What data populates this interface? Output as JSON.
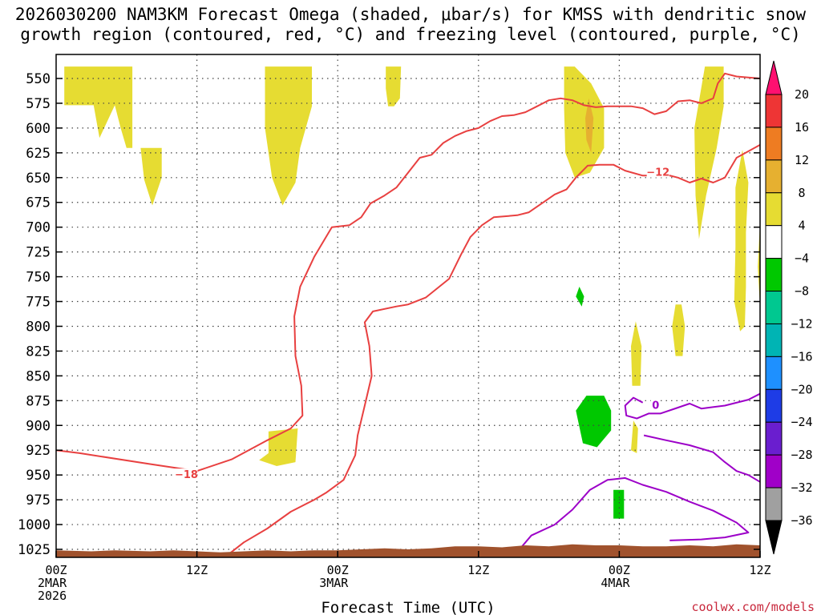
{
  "chart_data": {
    "type": "time-height",
    "title_line1": "2026030200 NAM3KM Forecast Omega (shaded, μbar/s) for KMSS with dendritic snow",
    "title_line2": "growth region (contoured, red, °C) and freezing level (contoured, purple, °C)",
    "xlabel": "Forecast Time (UTC)",
    "credit": "coolwx.com/models",
    "x_range_hours": [
      0,
      60
    ],
    "y_range_hpa": [
      1035,
      538
    ],
    "y_ticks": [
      "550",
      "575",
      "600",
      "625",
      "650",
      "675",
      "700",
      "725",
      "750",
      "775",
      "800",
      "825",
      "850",
      "875",
      "900",
      "925",
      "950",
      "975",
      "1000",
      "1025"
    ],
    "x_ticks": [
      {
        "hour": 0,
        "time": "00Z",
        "date": "2MAR",
        "year": "2026"
      },
      {
        "hour": 12,
        "time": "12Z",
        "date": "",
        "year": ""
      },
      {
        "hour": 24,
        "time": "00Z",
        "date": "3MAR",
        "year": ""
      },
      {
        "hour": 36,
        "time": "12Z",
        "date": "",
        "year": ""
      },
      {
        "hour": 48,
        "time": "00Z",
        "date": "4MAR",
        "year": ""
      },
      {
        "hour": 60,
        "time": "12Z",
        "date": "",
        "year": ""
      }
    ],
    "colorbar": {
      "labels": [
        "20",
        "16",
        "12",
        "8",
        "4",
        "-4",
        "-8",
        "-12",
        "-16",
        "-20",
        "-24",
        "-28",
        "-32",
        "-36"
      ],
      "colors": [
        "#ff1070",
        "#ee3535",
        "#ee7c22",
        "#e6b030",
        "#e6dc32",
        "#ffffff",
        "#00c800",
        "#00c890",
        "#00b4b4",
        "#1e90ff",
        "#1e3ce6",
        "#6a1ecf",
        "#a000c8",
        "#a0a0a0",
        "#000000"
      ]
    },
    "omega_regions": [
      {
        "name": "upward-motion-a",
        "level": "4..8",
        "points": [
          [
            0.7,
            538
          ],
          [
            6.5,
            538
          ],
          [
            6.5,
            620
          ],
          [
            9,
            620
          ],
          [
            9,
            650
          ],
          [
            8.2,
            678
          ],
          [
            7.5,
            652
          ],
          [
            7.2,
            620
          ],
          [
            6,
            620
          ],
          [
            5.5,
            600
          ],
          [
            5,
            577
          ],
          [
            3.7,
            610
          ],
          [
            3.2,
            577
          ],
          [
            1.5,
            577
          ],
          [
            0.7,
            577
          ]
        ]
      },
      {
        "name": "upward-motion-b",
        "level": "4..8",
        "points": [
          [
            17.8,
            538
          ],
          [
            21.8,
            538
          ],
          [
            21.8,
            578
          ],
          [
            20.8,
            620
          ],
          [
            20.4,
            655
          ],
          [
            19.3,
            678
          ],
          [
            18.4,
            650
          ],
          [
            17.8,
            600
          ]
        ]
      },
      {
        "name": "upward-motion-c",
        "level": "4..8",
        "points": [
          [
            28.1,
            538
          ],
          [
            29.4,
            538
          ],
          [
            29.3,
            570
          ],
          [
            28.8,
            578
          ],
          [
            28.3,
            578
          ],
          [
            28.1,
            560
          ]
        ]
      },
      {
        "name": "upward-motion-d",
        "level": "4..8",
        "points": [
          [
            18.1,
            906
          ],
          [
            20.6,
            903
          ],
          [
            20.4,
            937
          ],
          [
            18.8,
            941
          ],
          [
            17.3,
            935
          ],
          [
            18.1,
            928
          ]
        ]
      },
      {
        "name": "upward-motion-e",
        "level": "4..8",
        "points": [
          [
            43.3,
            538
          ],
          [
            44.2,
            538
          ],
          [
            45.6,
            555
          ],
          [
            46.7,
            580
          ],
          [
            46.7,
            620
          ],
          [
            45.5,
            645
          ],
          [
            44.2,
            650
          ],
          [
            43.4,
            625
          ],
          [
            43.3,
            580
          ]
        ]
      },
      {
        "name": "upward-motion-f",
        "level": "4..8",
        "points": [
          [
            55.3,
            538
          ],
          [
            56.9,
            538
          ],
          [
            56.9,
            578
          ],
          [
            56.3,
            620
          ],
          [
            55.4,
            668
          ],
          [
            54.8,
            712
          ],
          [
            54.5,
            668
          ],
          [
            54.4,
            600
          ]
        ]
      },
      {
        "name": "upward-motion-g",
        "level": "4..8",
        "points": [
          [
            58.5,
            622
          ],
          [
            59.0,
            655
          ],
          [
            58.8,
            705
          ],
          [
            58.8,
            760
          ],
          [
            58.7,
            800
          ],
          [
            58.3,
            805
          ],
          [
            57.8,
            775
          ],
          [
            57.9,
            720
          ],
          [
            57.9,
            660
          ]
        ]
      },
      {
        "name": "upward-motion-h",
        "level": "4..8",
        "points": [
          [
            60,
            695
          ],
          [
            60,
            780
          ],
          [
            59.8,
            740
          ]
        ]
      },
      {
        "name": "upward-motion-i",
        "level": "4..8",
        "points": [
          [
            53.3,
            778
          ],
          [
            53.6,
            800
          ],
          [
            53.4,
            830
          ],
          [
            52.8,
            830
          ],
          [
            52.5,
            800
          ],
          [
            52.8,
            778
          ]
        ]
      },
      {
        "name": "upward-motion-j",
        "level": "4..8",
        "points": [
          [
            49.4,
            795
          ],
          [
            49.9,
            820
          ],
          [
            49.8,
            860
          ],
          [
            49.1,
            860
          ],
          [
            49.0,
            820
          ]
        ]
      },
      {
        "name": "upward-motion-k",
        "level": "4..8",
        "points": [
          [
            49.2,
            895
          ],
          [
            49.6,
            903
          ],
          [
            49.5,
            928
          ],
          [
            49.0,
            925
          ]
        ]
      },
      {
        "name": "upward-motion-l",
        "level": "8..12",
        "points": [
          [
            45.4,
            570
          ],
          [
            45.8,
            590
          ],
          [
            45.6,
            625
          ],
          [
            45.2,
            612
          ],
          [
            45.1,
            590
          ]
        ]
      },
      {
        "name": "downward-motion-a",
        "level": "-4..-8",
        "points": [
          [
            44.6,
            760
          ],
          [
            45.0,
            770
          ],
          [
            44.8,
            780
          ],
          [
            44.3,
            770
          ]
        ]
      },
      {
        "name": "downward-motion-b",
        "level": "-4..-8",
        "points": [
          [
            45.2,
            870
          ],
          [
            46.7,
            870
          ],
          [
            47.3,
            885
          ],
          [
            47.3,
            905
          ],
          [
            46.1,
            922
          ],
          [
            44.9,
            918
          ],
          [
            44.3,
            885
          ]
        ]
      },
      {
        "name": "downward-motion-c",
        "level": "-4..-8",
        "points": [
          [
            47.5,
            965
          ],
          [
            48.4,
            965
          ],
          [
            48.4,
            994
          ],
          [
            47.5,
            994
          ]
        ]
      }
    ],
    "dgz_contours": [
      {
        "label": "-18",
        "label_at": [
          11.1,
          950
        ],
        "label_color": "#e84040",
        "points": [
          [
            0,
            925
          ],
          [
            2,
            928
          ],
          [
            8,
            939
          ],
          [
            12,
            946
          ],
          [
            15,
            934
          ],
          [
            18,
            915
          ],
          [
            20,
            903
          ],
          [
            21,
            890
          ],
          [
            20.9,
            860
          ],
          [
            20.4,
            830
          ],
          [
            20.3,
            790
          ],
          [
            20.8,
            760
          ],
          [
            22,
            730
          ],
          [
            23.5,
            700
          ],
          [
            25,
            698
          ],
          [
            26,
            690
          ],
          [
            26.8,
            676
          ],
          [
            28,
            668
          ],
          [
            29,
            660
          ],
          [
            30,
            645
          ],
          [
            31,
            630
          ],
          [
            32,
            627
          ],
          [
            33,
            615
          ],
          [
            34,
            608
          ],
          [
            35,
            603
          ],
          [
            36,
            600
          ],
          [
            37,
            593
          ],
          [
            38,
            588
          ],
          [
            39,
            587
          ],
          [
            40,
            584
          ],
          [
            41,
            578
          ],
          [
            42,
            572
          ],
          [
            43,
            570
          ],
          [
            44,
            572
          ],
          [
            45,
            577
          ],
          [
            46,
            579
          ],
          [
            47,
            578
          ],
          [
            49,
            578
          ],
          [
            50,
            580
          ],
          [
            51,
            586
          ],
          [
            52,
            583
          ],
          [
            53,
            573
          ],
          [
            54,
            572
          ],
          [
            55,
            575
          ],
          [
            56,
            570
          ],
          [
            56.4,
            555
          ],
          [
            57,
            545
          ],
          [
            58,
            548
          ],
          [
            60,
            550
          ]
        ]
      },
      {
        "label": "-12",
        "label_at": [
          51.3,
          645
        ],
        "label_color": "#e84040",
        "points": [
          [
            14.7,
            1030
          ],
          [
            16,
            1018
          ],
          [
            18,
            1004
          ],
          [
            20,
            987
          ],
          [
            22,
            975
          ],
          [
            23,
            968
          ],
          [
            24.5,
            955
          ],
          [
            25.5,
            930
          ],
          [
            25.7,
            910
          ],
          [
            26.3,
            880
          ],
          [
            26.9,
            850
          ],
          [
            26.7,
            820
          ],
          [
            26.3,
            796
          ],
          [
            27,
            785
          ],
          [
            29,
            780
          ],
          [
            30,
            778
          ],
          [
            31.5,
            771
          ],
          [
            33.5,
            752
          ],
          [
            34.5,
            728
          ],
          [
            35.3,
            710
          ],
          [
            36.3,
            698
          ],
          [
            37.3,
            690
          ],
          [
            39.3,
            688
          ],
          [
            40.3,
            685
          ],
          [
            42.5,
            667
          ],
          [
            43.5,
            662
          ],
          [
            44.3,
            650
          ],
          [
            45.3,
            638
          ],
          [
            46.3,
            637
          ],
          [
            47.5,
            637
          ],
          [
            48.5,
            643
          ],
          [
            50,
            648
          ],
          [
            51,
            648
          ],
          [
            52,
            647
          ],
          [
            53,
            650
          ],
          [
            54,
            655
          ],
          [
            55,
            651
          ],
          [
            56,
            655
          ],
          [
            57,
            650
          ],
          [
            58,
            630
          ],
          [
            60,
            617
          ]
        ]
      }
    ],
    "freezing_contours": [
      {
        "label": "0",
        "label_at": [
          51.1,
          880
        ],
        "label_color": "#9c00c8",
        "points": [
          [
            60,
            868
          ],
          [
            59,
            874
          ],
          [
            57,
            880
          ],
          [
            55,
            883
          ],
          [
            54,
            878
          ],
          [
            53,
            882
          ],
          [
            51.5,
            888
          ],
          [
            50.5,
            888
          ],
          [
            49.5,
            893
          ],
          [
            48.6,
            890
          ],
          [
            48.5,
            880
          ],
          [
            49.2,
            872
          ],
          [
            50,
            877
          ]
        ]
      },
      {
        "label": "",
        "label_at": null,
        "label_color": "#9c00c8",
        "points": [
          [
            50.1,
            910
          ],
          [
            52,
            915
          ],
          [
            54,
            920
          ],
          [
            56,
            927
          ],
          [
            57,
            937
          ],
          [
            58,
            946
          ],
          [
            59,
            950
          ],
          [
            60,
            957
          ]
        ]
      },
      {
        "label": "",
        "label_at": null,
        "label_color": "#9c00c8",
        "points": [
          [
            39.5,
            1025
          ],
          [
            40.5,
            1011
          ],
          [
            42.5,
            1000
          ],
          [
            44,
            985
          ],
          [
            45.5,
            965
          ],
          [
            47,
            955
          ],
          [
            48.5,
            953
          ],
          [
            50,
            960
          ],
          [
            52,
            967
          ],
          [
            54,
            977
          ],
          [
            56,
            986
          ],
          [
            58,
            998
          ],
          [
            59,
            1008
          ],
          [
            57,
            1013
          ],
          [
            55,
            1015
          ],
          [
            52.3,
            1016
          ]
        ]
      }
    ],
    "terrain_top_hpa": [
      [
        0,
        1026
      ],
      [
        3,
        1027
      ],
      [
        5,
        1026
      ],
      [
        8,
        1027
      ],
      [
        10,
        1026
      ],
      [
        12,
        1027
      ],
      [
        14,
        1028
      ],
      [
        16,
        1027
      ],
      [
        18,
        1026
      ],
      [
        20,
        1027
      ],
      [
        22,
        1026
      ],
      [
        24,
        1026
      ],
      [
        26,
        1025
      ],
      [
        28,
        1024
      ],
      [
        30,
        1025
      ],
      [
        32,
        1024
      ],
      [
        34,
        1022
      ],
      [
        36,
        1022
      ],
      [
        38,
        1023
      ],
      [
        40,
        1021
      ],
      [
        42,
        1022
      ],
      [
        44,
        1020
      ],
      [
        46,
        1021
      ],
      [
        48,
        1021
      ],
      [
        50,
        1022
      ],
      [
        52,
        1022
      ],
      [
        54,
        1021
      ],
      [
        56,
        1022
      ],
      [
        58,
        1020
      ],
      [
        60,
        1021
      ]
    ],
    "colors": {
      "contour_red": "#e84040",
      "contour_purple": "#9c00c8",
      "terrain": "#a0522d"
    }
  }
}
